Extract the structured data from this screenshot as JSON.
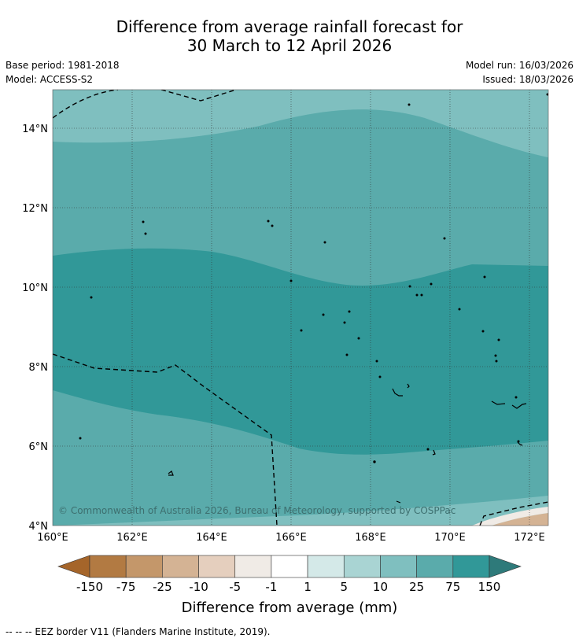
{
  "title": {
    "line1": "Difference from average rainfall forecast for",
    "line2": "30 March to 12 April 2026"
  },
  "meta": {
    "base_period": "Base period: 1981-2018",
    "model": "Model: ACCESS-S2",
    "model_run": "Model run: 16/03/2026",
    "issued": "Issued: 18/03/2026"
  },
  "map": {
    "x_ticks": [
      "160°E",
      "162°E",
      "164°E",
      "166°E",
      "168°E",
      "170°E",
      "172°E"
    ],
    "y_ticks": [
      "14°N",
      "12°N",
      "10°N",
      "8°N",
      "6°N",
      "4°N"
    ],
    "copyright": "© Commonwealth of Australia 2026, Bureau of Meteorology, supported by COSPPac"
  },
  "colorbar": {
    "title": "Difference from average (mm)",
    "labels": [
      "-150",
      "-75",
      "-25",
      "-10",
      "-5",
      "-1",
      "1",
      "5",
      "10",
      "25",
      "75",
      "150"
    ],
    "colors": [
      "#a5652a",
      "#b27a42",
      "#c4976a",
      "#d4b394",
      "#e5cfbe",
      "#f0ebe6",
      "#ffffff",
      "#d4e9e8",
      "#a9d4d3",
      "#7fbfbf",
      "#5aabab",
      "#319898",
      "#2e7a7a"
    ]
  },
  "footnote": "--  --  -- EEZ border V11 (Flanders Marine Institute, 2019)."
}
